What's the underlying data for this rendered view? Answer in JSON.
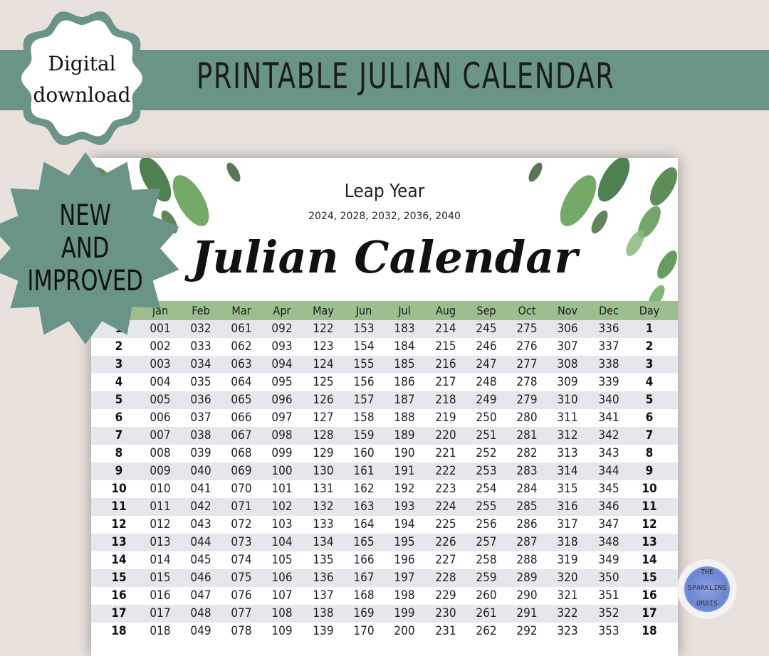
{
  "banner": {
    "title": "PRINTABLE JULIAN CALENDAR"
  },
  "badge": {
    "line1": "Digital",
    "line2": "download"
  },
  "calendar": {
    "subtitle": "Leap Year",
    "years": "2024, 2028, 2032, 2036, 2040",
    "title": "Julian Calendar",
    "headers": [
      "Day",
      "Jan",
      "Feb",
      "Mar",
      "Apr",
      "May",
      "Jun",
      "Jul",
      "Aug",
      "Sep",
      "Oct",
      "Nov",
      "Dec",
      "Day"
    ],
    "rows": [
      [
        "1",
        "001",
        "032",
        "061",
        "092",
        "122",
        "153",
        "183",
        "214",
        "245",
        "275",
        "306",
        "336",
        "1"
      ],
      [
        "2",
        "002",
        "033",
        "062",
        "093",
        "123",
        "154",
        "184",
        "215",
        "246",
        "276",
        "307",
        "337",
        "2"
      ],
      [
        "3",
        "003",
        "034",
        "063",
        "094",
        "124",
        "155",
        "185",
        "216",
        "247",
        "277",
        "308",
        "338",
        "3"
      ],
      [
        "4",
        "004",
        "035",
        "064",
        "095",
        "125",
        "156",
        "186",
        "217",
        "248",
        "278",
        "309",
        "339",
        "4"
      ],
      [
        "5",
        "005",
        "036",
        "065",
        "096",
        "126",
        "157",
        "187",
        "218",
        "249",
        "279",
        "310",
        "340",
        "5"
      ],
      [
        "6",
        "006",
        "037",
        "066",
        "097",
        "127",
        "158",
        "188",
        "219",
        "250",
        "280",
        "311",
        "341",
        "6"
      ],
      [
        "7",
        "007",
        "038",
        "067",
        "098",
        "128",
        "159",
        "189",
        "220",
        "251",
        "281",
        "312",
        "342",
        "7"
      ],
      [
        "8",
        "008",
        "039",
        "068",
        "099",
        "129",
        "160",
        "190",
        "221",
        "252",
        "282",
        "313",
        "343",
        "8"
      ],
      [
        "9",
        "009",
        "040",
        "069",
        "100",
        "130",
        "161",
        "191",
        "222",
        "253",
        "283",
        "314",
        "344",
        "9"
      ],
      [
        "10",
        "010",
        "041",
        "070",
        "101",
        "131",
        "162",
        "192",
        "223",
        "254",
        "284",
        "315",
        "345",
        "10"
      ],
      [
        "11",
        "011",
        "042",
        "071",
        "102",
        "132",
        "163",
        "193",
        "224",
        "255",
        "285",
        "316",
        "346",
        "11"
      ],
      [
        "12",
        "012",
        "043",
        "072",
        "103",
        "133",
        "164",
        "194",
        "225",
        "256",
        "286",
        "317",
        "347",
        "12"
      ],
      [
        "13",
        "013",
        "044",
        "073",
        "104",
        "134",
        "165",
        "195",
        "226",
        "257",
        "287",
        "318",
        "348",
        "13"
      ],
      [
        "14",
        "014",
        "045",
        "074",
        "105",
        "135",
        "166",
        "196",
        "227",
        "258",
        "288",
        "319",
        "349",
        "14"
      ],
      [
        "15",
        "015",
        "046",
        "075",
        "106",
        "136",
        "167",
        "197",
        "228",
        "259",
        "289",
        "320",
        "350",
        "15"
      ],
      [
        "16",
        "016",
        "047",
        "076",
        "107",
        "137",
        "168",
        "198",
        "229",
        "260",
        "290",
        "321",
        "351",
        "16"
      ],
      [
        "17",
        "017",
        "048",
        "077",
        "108",
        "138",
        "169",
        "199",
        "230",
        "261",
        "291",
        "322",
        "352",
        "17"
      ],
      [
        "18",
        "018",
        "049",
        "078",
        "109",
        "139",
        "170",
        "200",
        "231",
        "262",
        "292",
        "323",
        "353",
        "18"
      ]
    ]
  },
  "starburst": {
    "line1": "NEW",
    "line2": "AND",
    "line3": "IMPROVED"
  },
  "logo": {
    "line1": "THE",
    "line2": "SPARKLING",
    "line3": "ORBIS"
  },
  "colors": {
    "banner": "#6b9489",
    "header_row": "#9dbf8f",
    "alt_row": "#e6e7ec",
    "background": "#e9e1dc"
  }
}
